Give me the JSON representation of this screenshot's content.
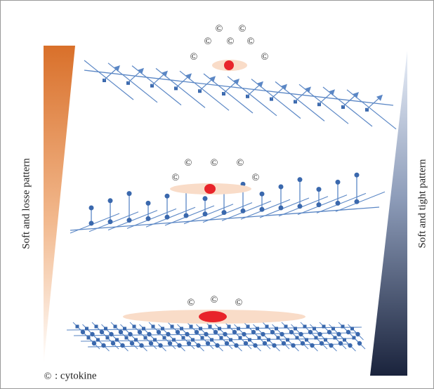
{
  "left_label": "Soft and losse pattern",
  "right_label": "Soft and tight pattern",
  "panels": [
    {
      "cytokines": [
        "©",
        "©",
        "©",
        "©",
        "©",
        "©",
        "©"
      ]
    },
    {
      "cytokines": [
        "©",
        "©",
        "©",
        "©",
        "©"
      ]
    },
    {
      "cytokines": [
        "©",
        "©",
        "©"
      ]
    }
  ],
  "legend": {
    "symbol": "©",
    "text": ": cytokine"
  }
}
